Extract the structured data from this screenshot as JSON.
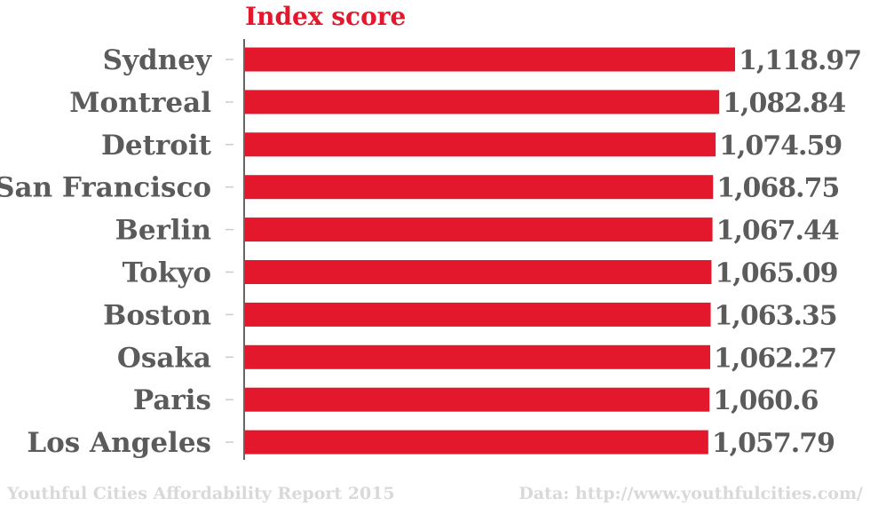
{
  "chart_data": {
    "type": "bar",
    "orientation": "horizontal",
    "title": "Index score",
    "categories": [
      "Sydney",
      "Montreal",
      "Detroit",
      "San Francisco",
      "Berlin",
      "Tokyo",
      "Boston",
      "Osaka",
      "Paris",
      "Los Angeles"
    ],
    "values": [
      1118.97,
      1082.84,
      1074.59,
      1068.75,
      1067.44,
      1065.09,
      1063.35,
      1062.27,
      1060.6,
      1057.79
    ],
    "value_labels": [
      "1,118.97",
      "1,082.84",
      "1,074.59",
      "1,068.75",
      "1,067.44",
      "1,065.09",
      "1,063.35",
      "1,062.27",
      "1,060.6",
      "1,057.79"
    ],
    "xlim": [
      0,
      1118.97
    ],
    "grid": false,
    "bar_color": "#e3182d"
  },
  "footer": {
    "source_left": "Youthful Cities Affordability Report 2015",
    "source_right": "Data: http://www.youthfulcities.com/"
  },
  "colors": {
    "bar": "#e3182d",
    "text": "#5b5b5b",
    "title": "#e3182d",
    "footer": "#d9d9d9"
  }
}
